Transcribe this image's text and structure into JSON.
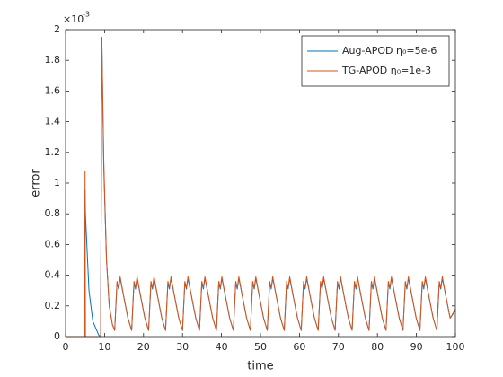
{
  "chart_data": {
    "type": "line",
    "xlabel": "time",
    "ylabel": "error",
    "y_scale_base": "×10",
    "y_scale_exponent": "-3",
    "xlim": [
      0,
      100
    ],
    "ylim": [
      0,
      2
    ],
    "xticks": [
      0,
      10,
      20,
      30,
      40,
      50,
      60,
      70,
      80,
      90,
      100
    ],
    "yticks": [
      0,
      0.2,
      0.4,
      0.6,
      0.8,
      1,
      1.2,
      1.4,
      1.6,
      1.8,
      2
    ],
    "grid": false,
    "legend": "upper right",
    "x": [
      0,
      4.9,
      5.0,
      5.1,
      6,
      7,
      8.5,
      9.0,
      9.3,
      9.8,
      10.5,
      11.2,
      12.0,
      12.6,
      13.2,
      13.6,
      14.0,
      15.0,
      16.0,
      16.95,
      17.55,
      17.95,
      18.35,
      19.35,
      20.35,
      21.3,
      21.9,
      22.3,
      22.7,
      23.7,
      24.7,
      25.65,
      26.25,
      26.65,
      27.05,
      28.05,
      29.05,
      30.0,
      30.6,
      31.0,
      31.4,
      32.4,
      33.4,
      34.35,
      34.95,
      35.35,
      35.75,
      36.75,
      37.75,
      38.7,
      39.3,
      39.7,
      40.1,
      41.1,
      42.1,
      43.05,
      43.65,
      44.05,
      44.45,
      45.45,
      46.45,
      47.4,
      48.0,
      48.4,
      48.8,
      49.8,
      50.8,
      51.75,
      52.35,
      52.75,
      53.15,
      54.15,
      55.15,
      56.1,
      56.7,
      57.1,
      57.5,
      58.5,
      59.5,
      60.45,
      61.05,
      61.45,
      61.85,
      62.85,
      63.85,
      64.8,
      65.4,
      65.8,
      66.2,
      67.2,
      68.2,
      69.15,
      69.75,
      70.15,
      70.55,
      71.55,
      72.55,
      73.5,
      74.1,
      74.5,
      74.9,
      75.9,
      76.9,
      77.85,
      78.45,
      78.85,
      79.25,
      80.25,
      81.25,
      82.2,
      82.8,
      83.2,
      83.6,
      84.6,
      85.6,
      86.55,
      87.15,
      87.55,
      87.95,
      88.95,
      89.95,
      90.9,
      91.5,
      91.9,
      92.3,
      93.3,
      94.3,
      95.25,
      95.85,
      96.25,
      96.65,
      97.65,
      98.65,
      100
    ],
    "series": [
      {
        "name": "Aug-APOD η₀=5e-6",
        "color": "#0072BD",
        "values": [
          0,
          0,
          0.95,
          0.8,
          0.3,
          0.1,
          0.01,
          0,
          1.95,
          1.1,
          0.5,
          0.2,
          0.08,
          0.04,
          0.35,
          0.31,
          0.38,
          0.25,
          0.12,
          0.04,
          0.35,
          0.31,
          0.38,
          0.25,
          0.12,
          0.04,
          0.35,
          0.31,
          0.38,
          0.25,
          0.12,
          0.04,
          0.35,
          0.31,
          0.38,
          0.25,
          0.12,
          0.04,
          0.35,
          0.31,
          0.38,
          0.25,
          0.12,
          0.04,
          0.35,
          0.31,
          0.38,
          0.25,
          0.12,
          0.04,
          0.35,
          0.31,
          0.38,
          0.25,
          0.12,
          0.04,
          0.35,
          0.31,
          0.38,
          0.25,
          0.12,
          0.04,
          0.35,
          0.31,
          0.38,
          0.25,
          0.12,
          0.04,
          0.35,
          0.31,
          0.38,
          0.25,
          0.12,
          0.04,
          0.35,
          0.31,
          0.38,
          0.25,
          0.12,
          0.04,
          0.35,
          0.31,
          0.38,
          0.25,
          0.12,
          0.04,
          0.35,
          0.31,
          0.38,
          0.25,
          0.12,
          0.04,
          0.35,
          0.31,
          0.38,
          0.25,
          0.12,
          0.04,
          0.35,
          0.31,
          0.38,
          0.25,
          0.12,
          0.04,
          0.35,
          0.31,
          0.38,
          0.25,
          0.12,
          0.04,
          0.35,
          0.31,
          0.38,
          0.25,
          0.12,
          0.04,
          0.35,
          0.31,
          0.38,
          0.25,
          0.12,
          0.04,
          0.35,
          0.31,
          0.38,
          0.25,
          0.12,
          0.04,
          0.35,
          0.31,
          0.38,
          0.25,
          0.12,
          0.17
        ]
      },
      {
        "name": "TG-APOD η₀=1e-3",
        "color": "#D95319",
        "values": [
          0,
          0,
          1.08,
          0,
          0,
          0,
          0,
          0,
          1.93,
          1.15,
          0.5,
          0.2,
          0.08,
          0.04,
          0.36,
          0.32,
          0.39,
          0.25,
          0.12,
          0.04,
          0.36,
          0.32,
          0.39,
          0.25,
          0.12,
          0.04,
          0.36,
          0.32,
          0.39,
          0.25,
          0.12,
          0.04,
          0.36,
          0.32,
          0.39,
          0.25,
          0.12,
          0.04,
          0.36,
          0.32,
          0.39,
          0.25,
          0.12,
          0.04,
          0.36,
          0.32,
          0.39,
          0.25,
          0.12,
          0.04,
          0.36,
          0.32,
          0.39,
          0.25,
          0.12,
          0.04,
          0.36,
          0.32,
          0.39,
          0.25,
          0.12,
          0.04,
          0.36,
          0.32,
          0.39,
          0.25,
          0.12,
          0.04,
          0.36,
          0.32,
          0.39,
          0.25,
          0.12,
          0.04,
          0.36,
          0.32,
          0.39,
          0.25,
          0.12,
          0.04,
          0.36,
          0.32,
          0.39,
          0.25,
          0.12,
          0.04,
          0.36,
          0.32,
          0.39,
          0.25,
          0.12,
          0.04,
          0.36,
          0.32,
          0.39,
          0.25,
          0.12,
          0.04,
          0.36,
          0.32,
          0.39,
          0.25,
          0.12,
          0.04,
          0.36,
          0.32,
          0.39,
          0.25,
          0.12,
          0.04,
          0.36,
          0.32,
          0.39,
          0.25,
          0.12,
          0.04,
          0.36,
          0.32,
          0.39,
          0.25,
          0.12,
          0.04,
          0.36,
          0.32,
          0.39,
          0.25,
          0.12,
          0.04,
          0.36,
          0.32,
          0.39,
          0.25,
          0.12,
          0.18
        ]
      }
    ]
  }
}
